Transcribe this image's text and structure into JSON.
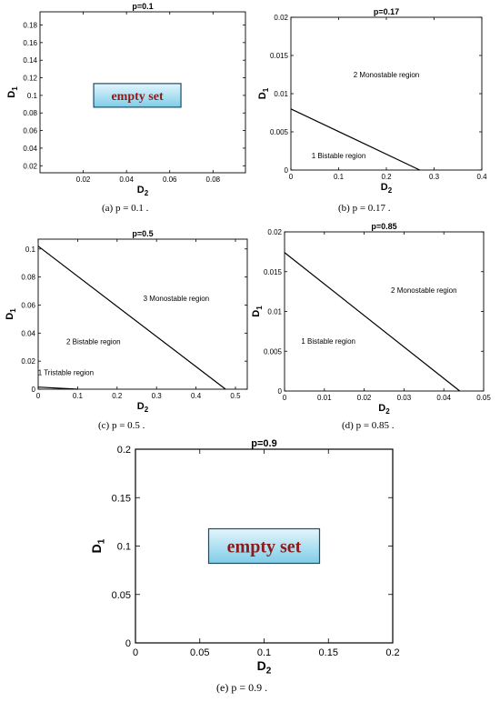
{
  "chart_data": [
    {
      "type": "line",
      "title": "p=0.1",
      "caption": "(a)  p = 0.1 .",
      "xlabel": "D2",
      "ylabel": "D1",
      "xticks": [
        "0.02",
        "0.04",
        "0.06",
        "0.08"
      ],
      "yticks": [
        "0.02",
        "0.04",
        "0.06",
        "0.08",
        "0.1",
        "0.12",
        "0.14",
        "0.16",
        "0.18"
      ],
      "xlim": [
        0,
        0.095
      ],
      "ylim": [
        0.012,
        0.195
      ],
      "series": [],
      "annotations": [
        {
          "text": "empty set",
          "x": 0.045,
          "y": 0.1,
          "boxed": true
        }
      ]
    },
    {
      "type": "line",
      "title": "p=0.17",
      "caption": "(b)  p = 0.17 .",
      "xlabel": "D2",
      "ylabel": "D1",
      "xticks": [
        "0",
        "0.1",
        "0.2",
        "0.3",
        "0.4"
      ],
      "yticks": [
        "0",
        "0.005",
        "0.01",
        "0.015",
        "0.02"
      ],
      "xlim": [
        0,
        0.4
      ],
      "ylim": [
        0,
        0.02
      ],
      "series": [
        {
          "x": [
            0,
            0.27
          ],
          "y": [
            0.008,
            0
          ]
        }
      ],
      "annotations": [
        {
          "text": "2 Monostable region",
          "x": 0.2,
          "y": 0.0125
        },
        {
          "text": "1 Bistable  region",
          "x": 0.1,
          "y": 0.0019
        }
      ]
    },
    {
      "type": "line",
      "title": "p=0.5",
      "caption": "(c)  p = 0.5 .",
      "xlabel": "D2",
      "ylabel": "D1",
      "xticks": [
        "0",
        "0.1",
        "0.2",
        "0.3",
        "0.4",
        "0.5"
      ],
      "yticks": [
        "0",
        "0.02",
        "0.04",
        "0.06",
        "0.08",
        "0.1"
      ],
      "xlim": [
        0,
        0.53
      ],
      "ylim": [
        0,
        0.107
      ],
      "series": [
        {
          "x": [
            0,
            0.475
          ],
          "y": [
            0.102,
            0
          ]
        },
        {
          "x": [
            0,
            0.1
          ],
          "y": [
            0.0015,
            0
          ]
        }
      ],
      "annotations": [
        {
          "text": "3 Monostable region",
          "x": 0.35,
          "y": 0.065
        },
        {
          "text": "2 Bistable region",
          "x": 0.14,
          "y": 0.034
        },
        {
          "text": "1 Tristable region",
          "x": 0.07,
          "y": 0.012
        }
      ]
    },
    {
      "type": "line",
      "title": "p=0.85",
      "caption": "(d)  p = 0.85 .",
      "xlabel": "D2",
      "ylabel": "D1",
      "xticks": [
        "0",
        "0.01",
        "0.02",
        "0.03",
        "0.04",
        "0.05"
      ],
      "yticks": [
        "0",
        "0.005",
        "0.01",
        "0.015",
        "0.02"
      ],
      "xlim": [
        0,
        0.05
      ],
      "ylim": [
        0,
        0.02
      ],
      "series": [
        {
          "x": [
            0,
            0.044
          ],
          "y": [
            0.0174,
            0
          ]
        }
      ],
      "annotations": [
        {
          "text": "2 Monostable region",
          "x": 0.035,
          "y": 0.0127
        },
        {
          "text": "1 Bistable region",
          "x": 0.011,
          "y": 0.0063
        }
      ]
    },
    {
      "type": "line",
      "title": "p=0.9",
      "caption": "(e)  p = 0.9 .",
      "xlabel": "D2",
      "ylabel": "D1",
      "xticks": [
        "0",
        "0.05",
        "0.1",
        "0.15",
        "0.2"
      ],
      "yticks": [
        "0",
        "0.05",
        "0.1",
        "0.15",
        "0.2"
      ],
      "xlim": [
        0,
        0.2
      ],
      "ylim": [
        0,
        0.2
      ],
      "series": [],
      "annotations": [
        {
          "text": "empty set",
          "x": 0.1,
          "y": 0.1,
          "boxed": true
        }
      ]
    }
  ]
}
